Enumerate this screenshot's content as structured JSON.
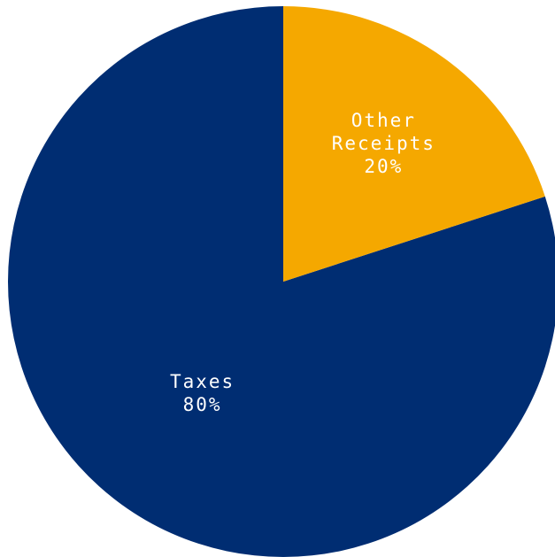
{
  "chart_data": {
    "type": "pie",
    "slices": [
      {
        "name": "Taxes",
        "label_lines": [
          "Taxes",
          "80%"
        ],
        "value": 80,
        "color": "#002d72"
      },
      {
        "name": "Other Receipts",
        "label_lines": [
          "Other",
          "Receipts",
          "20%"
        ],
        "value": 20,
        "color": "#f5a800"
      }
    ],
    "start_angle_deg": 90,
    "direction": "counterclockwise",
    "legend": "none"
  }
}
